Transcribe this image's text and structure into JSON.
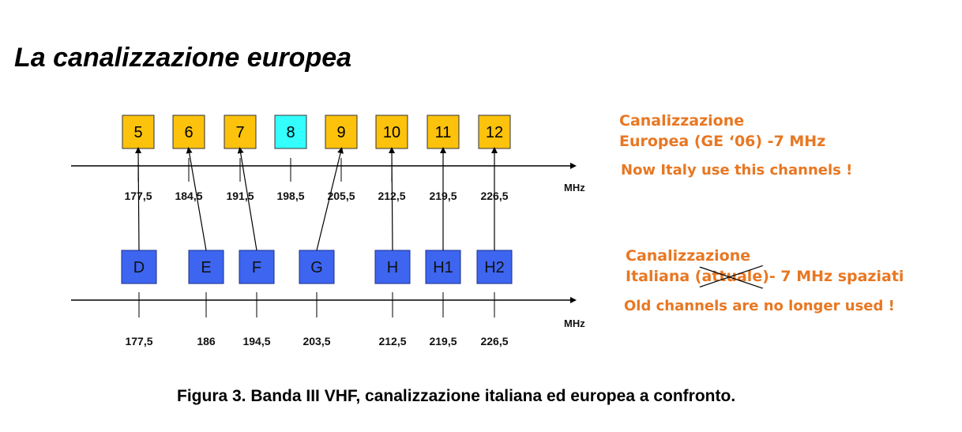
{
  "title": "La canalizzazione europea",
  "european": {
    "channels": [
      {
        "label": "5",
        "color": "#fcc20c"
      },
      {
        "label": "6",
        "color": "#fcc20c"
      },
      {
        "label": "7",
        "color": "#fcc20c"
      },
      {
        "label": "8",
        "color": "#33ffff"
      },
      {
        "label": "9",
        "color": "#fcc20c"
      },
      {
        "label": "10",
        "color": "#fcc20c"
      },
      {
        "label": "11",
        "color": "#fcc20c"
      },
      {
        "label": "12",
        "color": "#fcc20c"
      }
    ],
    "frequencies": [
      "177,5",
      "184,5",
      "191,5",
      "198,5",
      "205,5",
      "212,5",
      "219,5",
      "226,5"
    ],
    "unit": "MHz",
    "heading_line1": "Canalizzazione",
    "heading_line2": "Europea (GE ‘06) -7 MHz",
    "note": "Now Italy use this channels !"
  },
  "italian": {
    "channels": [
      {
        "label": "D",
        "color": "#3d65f0",
        "maps_to": "5"
      },
      {
        "label": "E",
        "color": "#3d65f0",
        "maps_to": "6"
      },
      {
        "label": "F",
        "color": "#3d65f0",
        "maps_to": "7"
      },
      {
        "label": "G",
        "color": "#3d65f0",
        "maps_to": "9"
      },
      {
        "label": "H",
        "color": "#3d65f0",
        "maps_to": "10"
      },
      {
        "label": "H1",
        "color": "#3d65f0",
        "maps_to": "11"
      },
      {
        "label": "H2",
        "color": "#3d65f0",
        "maps_to": "12"
      }
    ],
    "frequencies": [
      "177,5",
      "186",
      "194,5",
      "203,5",
      "212,5",
      "219,5",
      "226,5"
    ],
    "unit": "MHz",
    "heading_line1": "Canalizzazione",
    "heading_pre": "Italiana (",
    "heading_struck": "attuale",
    "heading_post": ")- 7 MHz spaziati",
    "note": "Old channels are no longer used !"
  },
  "caption": "Figura 3. Banda III VHF, canalizzazione italiana ed europea a confronto."
}
